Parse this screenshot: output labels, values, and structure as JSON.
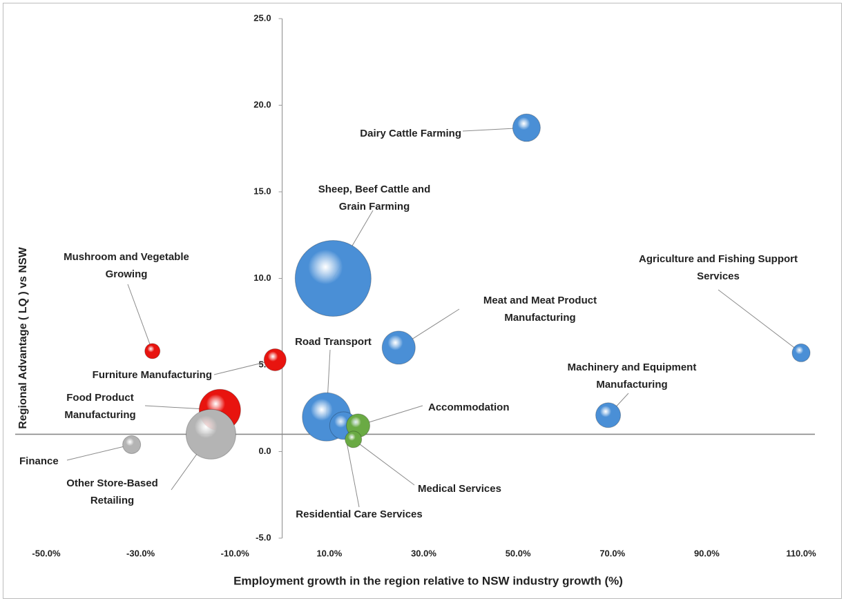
{
  "chart_data": {
    "type": "bubble",
    "x_label": "Employment growth in the region relative to NSW industry growth (%)",
    "y_label": "Regional  Advantage ( LQ ) vs NSW",
    "xlim": [
      -50,
      110
    ],
    "xticks": [
      {
        "value": -50,
        "label": "-50.0%"
      },
      {
        "value": -30,
        "label": "-30.0%"
      },
      {
        "value": -10,
        "label": "-10.0%"
      },
      {
        "value": 10,
        "label": "10.0%"
      },
      {
        "value": 30,
        "label": "30.0%"
      },
      {
        "value": 50,
        "label": "50.0%"
      },
      {
        "value": 70,
        "label": "70.0%"
      },
      {
        "value": 90,
        "label": "90.0%"
      },
      {
        "value": 110,
        "label": "110.0%"
      }
    ],
    "ylim": [
      -5,
      25
    ],
    "yticks": [
      {
        "value": -5,
        "label": "-5.0"
      },
      {
        "value": 0,
        "label": "0.0"
      },
      {
        "value": 5,
        "label": "5.0"
      },
      {
        "value": 10,
        "label": "10.0"
      },
      {
        "value": 15,
        "label": "15.0"
      },
      {
        "value": 20,
        "label": "20.0"
      },
      {
        "value": 25,
        "label": "25.0"
      }
    ],
    "x_axis_crosses_y": 1,
    "y_axis_crosses_x": 0,
    "points": [
      {
        "name": "Sheep, Beef Cattle and Grain Farming",
        "x": 10.8,
        "y": 10.0,
        "size": 55,
        "color": "#4a8fd6"
      },
      {
        "name": "Dairy Cattle Farming",
        "x": 51.8,
        "y": 18.7,
        "size": 20,
        "color": "#4a8fd6"
      },
      {
        "name": "Agriculture and Fishing Support Services",
        "x": 110,
        "y": 5.7,
        "size": 13,
        "color": "#4a8fd6"
      },
      {
        "name": "Meat and Meat Product Manufacturing",
        "x": 24.7,
        "y": 6.0,
        "size": 24,
        "color": "#4a8fd6"
      },
      {
        "name": "Machinery and Equipment Manufacturing",
        "x": 69.1,
        "y": 2.1,
        "size": 18,
        "color": "#4a8fd6"
      },
      {
        "name": "Road Transport",
        "x": 9.4,
        "y": 2.0,
        "size": 35,
        "color": "#4a8fd6"
      },
      {
        "name": "Residential Care Services",
        "x": 13,
        "y": 1.5,
        "size": 20,
        "color": "#4a8fd6"
      },
      {
        "name": "Accommodation",
        "x": 16.1,
        "y": 1.5,
        "size": 17,
        "color": "#6aaa44"
      },
      {
        "name": "Medical Services",
        "x": 15.1,
        "y": 0.7,
        "size": 12,
        "color": "#6aaa44"
      },
      {
        "name": "Mushroom and Vegetable Growing",
        "x": -27.5,
        "y": 5.8,
        "size": 11,
        "color": "#e8140f"
      },
      {
        "name": "Furniture Manufacturing",
        "x": -1.5,
        "y": 5.3,
        "size": 16,
        "color": "#e8140f"
      },
      {
        "name": "Food Product Manufacturing",
        "x": -13.2,
        "y": 2.4,
        "size": 30,
        "color": "#e8140f"
      },
      {
        "name": "Other Store-Based Retailing",
        "x": -15.1,
        "y": 1.0,
        "size": 36,
        "color": "#b4b4b4"
      },
      {
        "name": "Finance",
        "x": -31.9,
        "y": 0.4,
        "size": 13,
        "color": "#b4b4b4"
      }
    ]
  }
}
